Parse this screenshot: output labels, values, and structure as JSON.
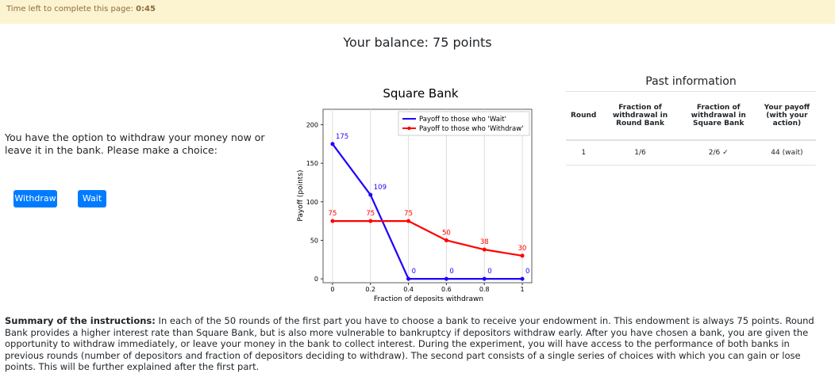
{
  "timer": {
    "label": "Time left to complete this page:",
    "value": "0:45"
  },
  "balance": "Your balance: 75 points",
  "prompt": "You have the option to withdraw your money now or leave it in the bank. Please make a choice:",
  "buttons": [
    "Withdraw",
    "Wait"
  ],
  "chart_data": {
    "type": "line",
    "title": "Square Bank",
    "x": [
      0,
      0.2,
      0.4,
      0.6,
      0.8,
      1
    ],
    "series": [
      {
        "name": "Payoff to those who 'Wait'",
        "color": "#1f00ff",
        "values": [
          175,
          109,
          0,
          0,
          0,
          0
        ]
      },
      {
        "name": "Payoff to those who 'Withdraw'",
        "color": "#ff0000",
        "values": [
          75,
          75,
          75,
          50,
          38,
          30
        ]
      }
    ],
    "xlim": [
      -0.05,
      1.05
    ],
    "ylim": [
      -5,
      220
    ],
    "xticks": [
      0,
      0.2,
      0.4,
      0.6,
      0.8,
      1
    ],
    "yticks": [
      0,
      50,
      100,
      150,
      200
    ],
    "xlabel": "Fraction of deposits withdrawn",
    "ylabel": "Payoff (points)",
    "grid": true,
    "legend": "upper right"
  },
  "past": {
    "title": "Past information",
    "headers": [
      "Round",
      "Fraction of withdrawal in Round Bank",
      "Fraction of withdrawal in Square Bank",
      "Your payoff (with your action)"
    ],
    "rows": [
      [
        "1",
        "1/6",
        "2/6 ✓",
        "44 (wait)"
      ]
    ]
  },
  "summary": {
    "lead": "Summary of the instructions:",
    "text": "In each of the 50 rounds of the first part you have to choose a bank to receive your endowment in. This endowment is always 75 points. Round Bank provides a higher interest rate than Square Bank, but is also more vulnerable to bankruptcy if depositors withdraw early. After you have chosen a bank, you are given the opportunity to withdraw immediately, or leave your money in the bank to collect interest. During the experiment, you will have access to the performance of both banks in previous rounds (number of depositors and fraction of depositors deciding to withdraw). The second part consists of a single series of choices with which you can gain or lose points. This will be further explained after the first part."
  }
}
